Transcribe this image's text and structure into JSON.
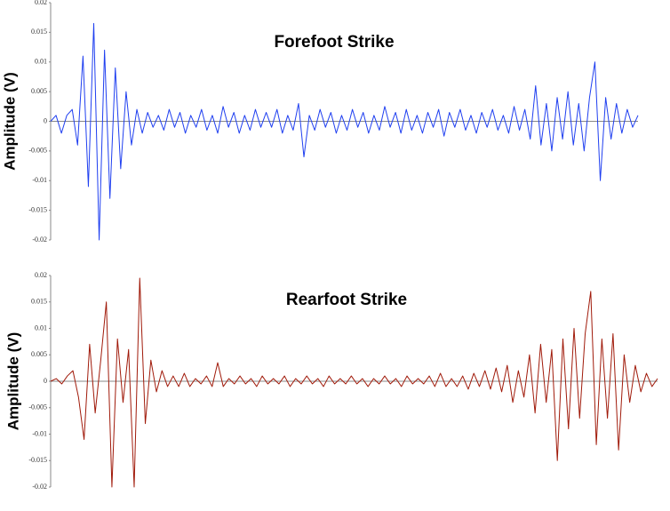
{
  "chart_data": [
    {
      "type": "line",
      "title": "Forefoot Strike",
      "y_label": "Amplitude (V)",
      "color": "#1f3ff0",
      "ylim": [
        -0.02,
        0.02
      ],
      "yticks": [
        0.02,
        0.015,
        0.01,
        0.005,
        0,
        -0.005,
        -0.01,
        -0.015,
        -0.02
      ],
      "values": [
        0,
        0.001,
        -0.002,
        0.001,
        0.002,
        -0.004,
        0.011,
        -0.011,
        0.0165,
        -0.02,
        0.012,
        -0.013,
        0.009,
        -0.008,
        0.005,
        -0.004,
        0.002,
        -0.002,
        0.0015,
        -0.001,
        0.001,
        -0.0015,
        0.002,
        -0.001,
        0.0015,
        -0.002,
        0.001,
        -0.001,
        0.002,
        -0.0015,
        0.001,
        -0.002,
        0.0025,
        -0.001,
        0.0015,
        -0.002,
        0.001,
        -0.0015,
        0.002,
        -0.001,
        0.0015,
        -0.001,
        0.002,
        -0.002,
        0.001,
        -0.0015,
        0.003,
        -0.006,
        0.001,
        -0.0015,
        0.002,
        -0.001,
        0.0015,
        -0.002,
        0.001,
        -0.0015,
        0.002,
        -0.001,
        0.0015,
        -0.002,
        0.001,
        -0.0015,
        0.0025,
        -0.001,
        0.0015,
        -0.002,
        0.002,
        -0.0015,
        0.001,
        -0.002,
        0.0015,
        -0.001,
        0.002,
        -0.0025,
        0.0015,
        -0.001,
        0.002,
        -0.0015,
        0.001,
        -0.002,
        0.0015,
        -0.001,
        0.002,
        -0.0015,
        0.001,
        -0.002,
        0.0025,
        -0.0015,
        0.002,
        -0.003,
        0.006,
        -0.004,
        0.003,
        -0.005,
        0.004,
        -0.003,
        0.005,
        -0.004,
        0.003,
        -0.005,
        0.004,
        0.01,
        -0.01,
        0.004,
        -0.003,
        0.003,
        -0.002,
        0.002,
        -0.001,
        0.001
      ]
    },
    {
      "type": "line",
      "title": "Rearfoot Strike",
      "y_label": "Amplitude (V)",
      "color": "#a01a0a",
      "ylim": [
        -0.02,
        0.02
      ],
      "yticks": [
        0.02,
        0.015,
        0.01,
        0.005,
        0,
        -0.005,
        -0.01,
        -0.015,
        -0.02
      ],
      "values": [
        0,
        0.0005,
        -0.0005,
        0.001,
        0.002,
        -0.003,
        -0.011,
        0.007,
        -0.006,
        0.004,
        0.015,
        -0.02,
        0.008,
        -0.004,
        0.006,
        -0.02,
        0.0195,
        -0.008,
        0.004,
        -0.002,
        0.002,
        -0.001,
        0.001,
        -0.001,
        0.0015,
        -0.001,
        0.0005,
        -0.0005,
        0.001,
        -0.001,
        0.0035,
        -0.001,
        0.0005,
        -0.0005,
        0.001,
        -0.0005,
        0.0005,
        -0.001,
        0.001,
        -0.0005,
        0.0005,
        -0.0005,
        0.001,
        -0.001,
        0.0005,
        -0.0005,
        0.001,
        -0.0005,
        0.0005,
        -0.001,
        0.001,
        -0.0005,
        0.0005,
        -0.0005,
        0.001,
        -0.0005,
        0.0005,
        -0.001,
        0.0005,
        -0.0005,
        0.001,
        -0.0005,
        0.0005,
        -0.001,
        0.001,
        -0.0005,
        0.0005,
        -0.0005,
        0.001,
        -0.001,
        0.0015,
        -0.001,
        0.0005,
        -0.001,
        0.001,
        -0.0015,
        0.0015,
        -0.001,
        0.002,
        -0.0015,
        0.0025,
        -0.002,
        0.003,
        -0.004,
        0.002,
        -0.003,
        0.005,
        -0.006,
        0.007,
        -0.004,
        0.006,
        -0.015,
        0.008,
        -0.009,
        0.01,
        -0.007,
        0.009,
        0.017,
        -0.012,
        0.008,
        -0.007,
        0.009,
        -0.013,
        0.005,
        -0.004,
        0.003,
        -0.002,
        0.0015,
        -0.001,
        0.0005
      ]
    }
  ]
}
